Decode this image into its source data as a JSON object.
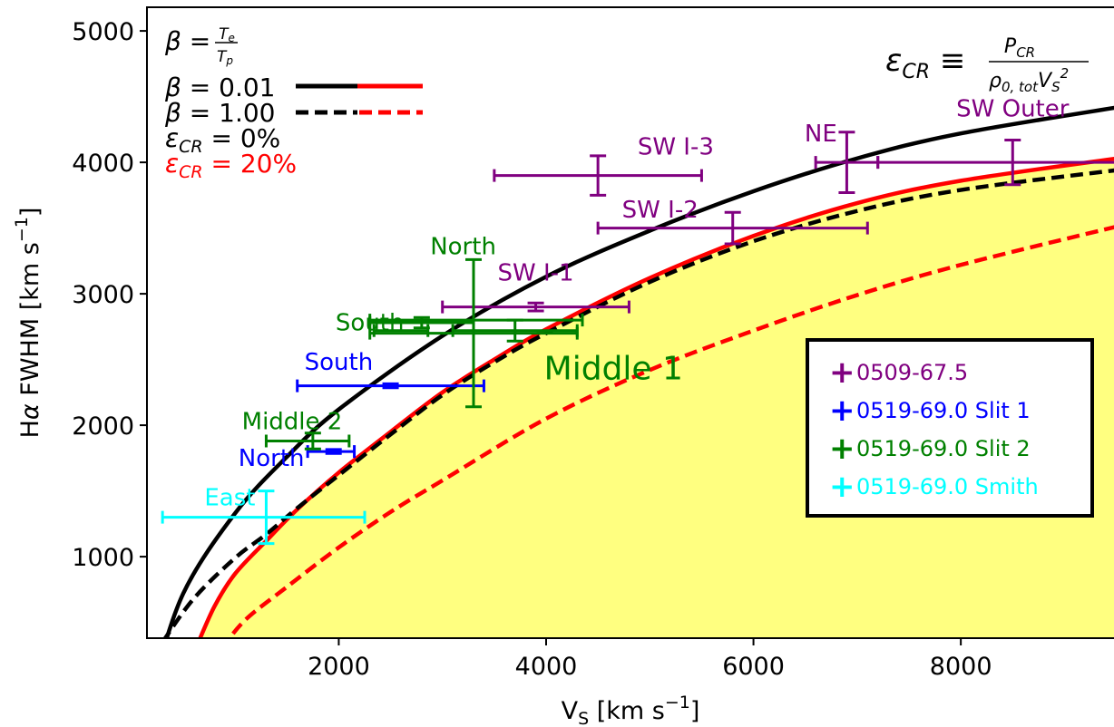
{
  "chart_data": {
    "type": "scatter",
    "xlabel": "V_S [km s^-1]",
    "ylabel": "Hα FWHM [km s^-1]",
    "xlim": [
      150,
      9600
    ],
    "ylim": [
      380,
      5180
    ],
    "x_ticks": [
      "2000",
      "4000",
      "6000",
      "8000"
    ],
    "y_ticks": [
      "1000",
      "2000",
      "3000",
      "4000",
      "5000"
    ],
    "fill_color": "#ffff80",
    "curves": [
      {
        "style": "solid",
        "color": "#000000",
        "description": "β = 0.01, ε_CR = 0%",
        "points": [
          [
            200,
            0
          ],
          [
            500,
            720
          ],
          [
            1000,
            1330
          ],
          [
            1500,
            1760
          ],
          [
            2000,
            2120
          ],
          [
            3000,
            2680
          ],
          [
            4000,
            3130
          ],
          [
            5000,
            3480
          ],
          [
            6000,
            3780
          ],
          [
            7000,
            4030
          ],
          [
            8000,
            4220
          ],
          [
            9600,
            4430
          ]
        ]
      },
      {
        "style": "solid",
        "color": "#ff0000",
        "description": "β = 0.01, ε_CR = 20%",
        "points": [
          [
            620,
            300
          ],
          [
            800,
            620
          ],
          [
            1000,
            870
          ],
          [
            1300,
            1120
          ],
          [
            1600,
            1360
          ],
          [
            2000,
            1640
          ],
          [
            2500,
            1950
          ],
          [
            3000,
            2250
          ],
          [
            3500,
            2500
          ],
          [
            4000,
            2730
          ],
          [
            5000,
            3120
          ],
          [
            6000,
            3440
          ],
          [
            7000,
            3690
          ],
          [
            8000,
            3860
          ],
          [
            9600,
            4040
          ]
        ]
      },
      {
        "style": "dashed",
        "color": "#000000",
        "description": "β = 1.00, ε_CR = 0%",
        "points": [
          [
            300,
            350
          ],
          [
            600,
            680
          ],
          [
            1000,
            990
          ],
          [
            1300,
            1170
          ],
          [
            1600,
            1370
          ],
          [
            2000,
            1620
          ],
          [
            2500,
            1930
          ],
          [
            3000,
            2230
          ],
          [
            3500,
            2480
          ],
          [
            4000,
            2700
          ],
          [
            5000,
            3090
          ],
          [
            6000,
            3400
          ],
          [
            7000,
            3630
          ],
          [
            8000,
            3790
          ],
          [
            9600,
            3950
          ]
        ]
      },
      {
        "style": "dashed",
        "color": "#ff0000",
        "description": "β = 1.00, ε_CR = 20%",
        "points": [
          [
            870,
            300
          ],
          [
            1100,
            520
          ],
          [
            1500,
            770
          ],
          [
            2000,
            1070
          ],
          [
            2500,
            1340
          ],
          [
            3000,
            1580
          ],
          [
            4000,
            2050
          ],
          [
            5000,
            2420
          ],
          [
            6000,
            2720
          ],
          [
            7000,
            2990
          ],
          [
            8000,
            3220
          ],
          [
            9600,
            3530
          ]
        ]
      }
    ],
    "series": [
      {
        "name": "0509-67.5",
        "color": "#800080",
        "points": [
          {
            "label": "SW I-1",
            "x": 3900,
            "y": 2900,
            "xerr": [
              900,
              900
            ],
            "yerr": [
              30,
              30
            ],
            "label_pos": [
              3900,
              3100
            ]
          },
          {
            "label": "SW I-2",
            "x": 5800,
            "y": 3500,
            "xerr": [
              1300,
              1300
            ],
            "yerr": [
              120,
              120
            ],
            "label_pos": [
              5100,
              3580
            ]
          },
          {
            "label": "SW I-3",
            "x": 4500,
            "y": 3900,
            "xerr": [
              1000,
              1000
            ],
            "yerr": [
              150,
              150
            ],
            "label_pos": [
              5250,
              4060
            ]
          },
          {
            "label": "NE",
            "x": 6900,
            "y": 4000,
            "xerr": [
              300,
              300
            ],
            "yerr": [
              230,
              230
            ],
            "label_pos": [
              6650,
              4160
            ]
          },
          {
            "label": "SW Outer",
            "x": 8500,
            "y": 4000,
            "xerr": [
              1300,
              1300
            ],
            "yerr": [
              170,
              170
            ],
            "label_pos": [
              8500,
              4350
            ]
          }
        ]
      },
      {
        "name": "0519-69.0 Slit 1",
        "color": "#0000ff",
        "points": [
          {
            "label": "South",
            "x": 2500,
            "y": 2300,
            "xerr": [
              900,
              900
            ],
            "yerr": [
              15,
              15
            ],
            "label_pos": [
              2000,
              2420
            ]
          },
          {
            "label": "North",
            "x": 1950,
            "y": 1800,
            "xerr": [
              250,
              200
            ],
            "yerr": [
              15,
              15
            ],
            "label_pos": [
              1350,
              1690
            ]
          }
        ]
      },
      {
        "name": "0519-69.0 Slit 2",
        "color": "#008000",
        "points": [
          {
            "label": "South",
            "x": 2800,
            "y": 2780,
            "xerr": [
              500,
              500
            ],
            "yerr": [
              40,
              40
            ],
            "label_pos": [
              2300,
              2720
            ]
          },
          {
            "label": "",
            "x": 2600,
            "y": 2720,
            "xerr": [
              260,
              260
            ],
            "yerr": [
              0,
              0
            ],
            "label_pos": [
              0,
              0
            ]
          },
          {
            "label": "North",
            "x": 3300,
            "y": 2700,
            "xerr": [
              1000,
              1000
            ],
            "yerr": [
              560,
              560
            ],
            "label_pos": [
              3200,
              3300
            ]
          },
          {
            "label": "",
            "x": 3700,
            "y": 2720,
            "xerr": [
              600,
              600
            ],
            "yerr": [
              80,
              80
            ],
            "label_pos": [
              0,
              0
            ]
          },
          {
            "label": "Middle 1",
            "x": 2800,
            "y": 2800,
            "xerr": [
              500,
              1550
            ],
            "yerr": [
              0,
              0
            ],
            "label_pos": [
              4650,
              2350
            ]
          },
          {
            "label": "Middle 2",
            "x": 1750,
            "y": 1880,
            "xerr": [
              450,
              350
            ],
            "yerr": [
              60,
              60
            ],
            "label_pos": [
              1550,
              1970
            ]
          }
        ]
      },
      {
        "name": "0519-69.0 Smith",
        "color": "#00ffff",
        "points": [
          {
            "label": "East",
            "x": 1300,
            "y": 1300,
            "xerr": [
              1000,
              950
            ],
            "yerr": [
              200,
              200
            ],
            "label_pos": [
              950,
              1390
            ]
          }
        ]
      }
    ],
    "legend_placement": "lower-right",
    "legend": [
      {
        "label": "0509-67.5",
        "color": "#800080"
      },
      {
        "label": "0519-69.0 Slit 1",
        "color": "#0000ff"
      },
      {
        "label": "0519-69.0 Slit 2",
        "color": "#008000"
      },
      {
        "label": "0519-69.0 Smith",
        "color": "#00ffff"
      }
    ],
    "upper_left_legend": {
      "beta_def": "β = Te/Tp",
      "beta_001": "β = 0.01",
      "beta_100": "β = 1.00",
      "ecr_0": "εCR = 0%",
      "ecr_20": "εCR = 20%"
    },
    "annotation_formula": "εCR ≡ PCR / (ρ0,tot VS^2)"
  }
}
